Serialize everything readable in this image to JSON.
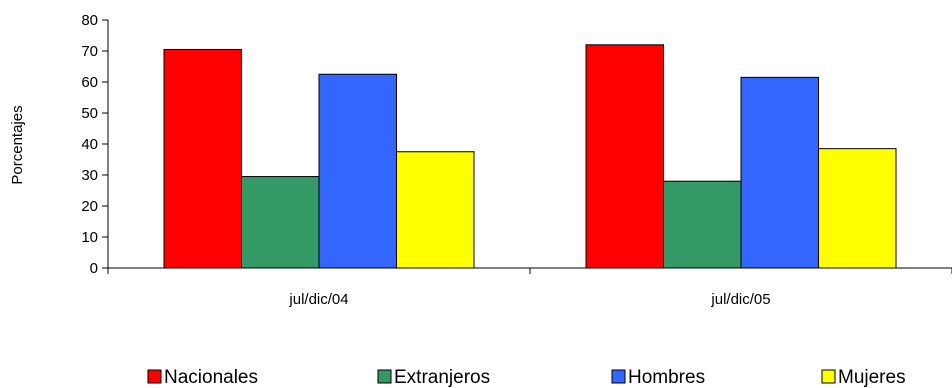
{
  "chart_data": {
    "type": "bar",
    "title": "",
    "xlabel": "",
    "ylabel": "Porcentajes",
    "ylim": [
      0,
      80
    ],
    "yticks": [
      0,
      10,
      20,
      30,
      40,
      50,
      60,
      70,
      80
    ],
    "categories": [
      "jul/dic/04",
      "jul/dic/05"
    ],
    "grid": false,
    "legend_position": "bottom",
    "series": [
      {
        "name": "Nacionales",
        "color": "#ff0000",
        "values": [
          70.5,
          72.0
        ]
      },
      {
        "name": "Extranjeros",
        "color": "#339966",
        "values": [
          29.5,
          28.0
        ]
      },
      {
        "name": "Hombres",
        "color": "#3366ff",
        "values": [
          62.5,
          61.5
        ]
      },
      {
        "name": "Mujeres",
        "color": "#ffff00",
        "values": [
          37.5,
          38.5
        ]
      }
    ]
  }
}
